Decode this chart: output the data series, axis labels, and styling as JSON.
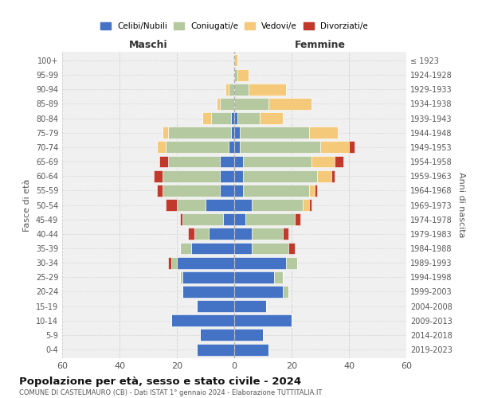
{
  "age_groups": [
    "0-4",
    "5-9",
    "10-14",
    "15-19",
    "20-24",
    "25-29",
    "30-34",
    "35-39",
    "40-44",
    "45-49",
    "50-54",
    "55-59",
    "60-64",
    "65-69",
    "70-74",
    "75-79",
    "80-84",
    "85-89",
    "90-94",
    "95-99",
    "100+"
  ],
  "birth_years": [
    "2019-2023",
    "2014-2018",
    "2009-2013",
    "2004-2008",
    "1999-2003",
    "1994-1998",
    "1989-1993",
    "1984-1988",
    "1979-1983",
    "1974-1978",
    "1969-1973",
    "1964-1968",
    "1959-1963",
    "1954-1958",
    "1949-1953",
    "1944-1948",
    "1939-1943",
    "1934-1938",
    "1929-1933",
    "1924-1928",
    "≤ 1923"
  ],
  "colors": {
    "celibi": "#4472c4",
    "coniugati": "#b5c9a0",
    "vedovi": "#f5c97a",
    "divorziati": "#c0392b"
  },
  "males": {
    "celibi": [
      13,
      12,
      22,
      13,
      18,
      18,
      20,
      15,
      9,
      4,
      10,
      5,
      5,
      5,
      2,
      1,
      1,
      0,
      0,
      0,
      0
    ],
    "coniugati": [
      0,
      0,
      0,
      0,
      0,
      1,
      2,
      4,
      5,
      14,
      10,
      20,
      20,
      18,
      22,
      22,
      7,
      5,
      2,
      0,
      0
    ],
    "vedovi": [
      0,
      0,
      0,
      0,
      0,
      0,
      0,
      0,
      0,
      0,
      0,
      0,
      0,
      0,
      3,
      2,
      3,
      1,
      1,
      0,
      0
    ],
    "divorziati": [
      0,
      0,
      0,
      0,
      0,
      0,
      1,
      0,
      2,
      1,
      4,
      2,
      3,
      3,
      0,
      0,
      0,
      0,
      0,
      0,
      0
    ]
  },
  "females": {
    "celibi": [
      12,
      10,
      20,
      11,
      17,
      14,
      18,
      6,
      6,
      4,
      6,
      3,
      3,
      3,
      2,
      2,
      1,
      0,
      0,
      0,
      0
    ],
    "coniugati": [
      0,
      0,
      0,
      0,
      2,
      3,
      4,
      13,
      11,
      17,
      18,
      23,
      26,
      24,
      28,
      24,
      8,
      12,
      5,
      1,
      0
    ],
    "vedovi": [
      0,
      0,
      0,
      0,
      0,
      0,
      0,
      0,
      0,
      0,
      2,
      2,
      5,
      8,
      10,
      10,
      8,
      15,
      13,
      4,
      1
    ],
    "divorziati": [
      0,
      0,
      0,
      0,
      0,
      0,
      0,
      2,
      2,
      2,
      1,
      1,
      1,
      3,
      2,
      0,
      0,
      0,
      0,
      0,
      0
    ]
  },
  "xlim": 60,
  "title": "Popolazione per età, sesso e stato civile - 2024",
  "subtitle": "COMUNE DI CASTELMAURO (CB) - Dati ISTAT 1° gennaio 2024 - Elaborazione TUTTITALIA.IT",
  "xlabel_left": "Maschi",
  "xlabel_right": "Femmine",
  "ylabel_left": "Fasce di età",
  "ylabel_right": "Anni di nascita",
  "legend_labels": [
    "Celibi/Nubili",
    "Coniugati/e",
    "Vedovi/e",
    "Divorziati/e"
  ],
  "bg_color": "#f0f0f0",
  "grid_color": "#cccccc"
}
